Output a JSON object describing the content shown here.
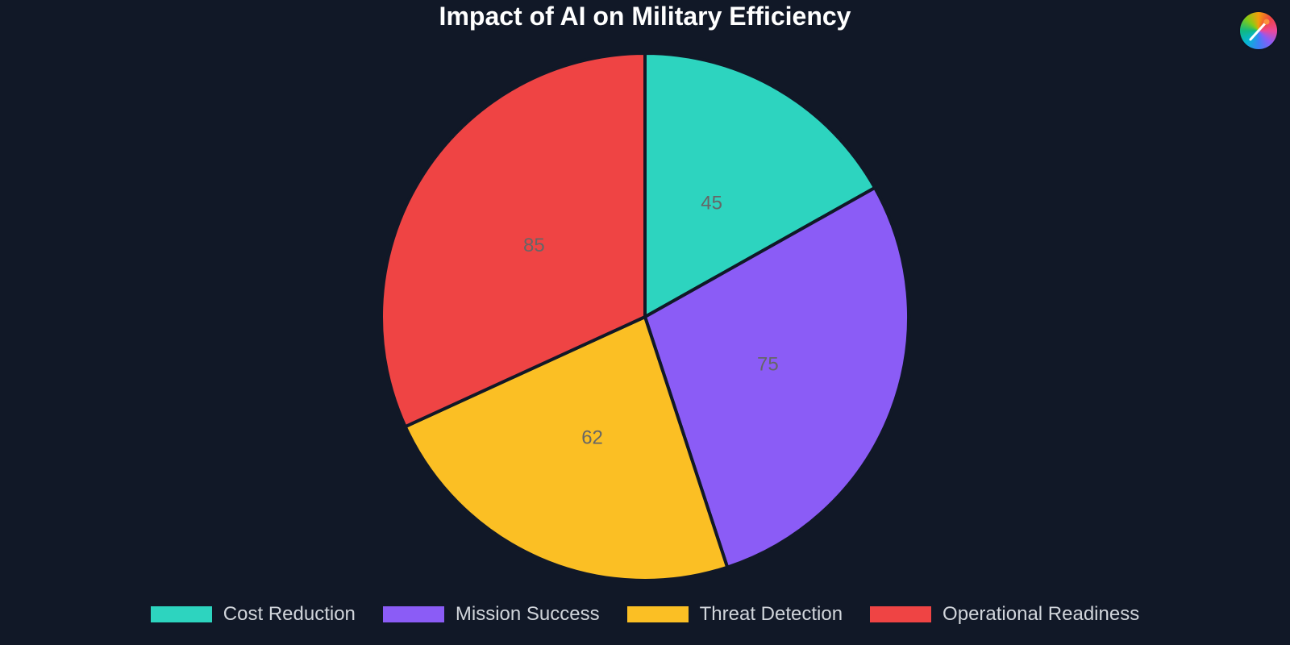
{
  "chart_data": {
    "type": "pie",
    "title": "Impact of AI on Military Efficiency",
    "categories": [
      "Cost Reduction",
      "Mission Success",
      "Threat Detection",
      "Operational Readiness"
    ],
    "values": [
      45,
      75,
      62,
      85
    ],
    "colors": [
      "#2dd4bf",
      "#8b5cf6",
      "#fbbf24",
      "#ef4444"
    ],
    "legend": "bottom",
    "data_labels": true
  },
  "legend_items": [
    {
      "label": "Cost Reduction",
      "color": "#2dd4bf"
    },
    {
      "label": "Mission Success",
      "color": "#8b5cf6"
    },
    {
      "label": "Threat Detection",
      "color": "#fbbf24"
    },
    {
      "label": "Operational Readiness",
      "color": "#ef4444"
    }
  ],
  "badge_icon": "palette-brush-icon"
}
